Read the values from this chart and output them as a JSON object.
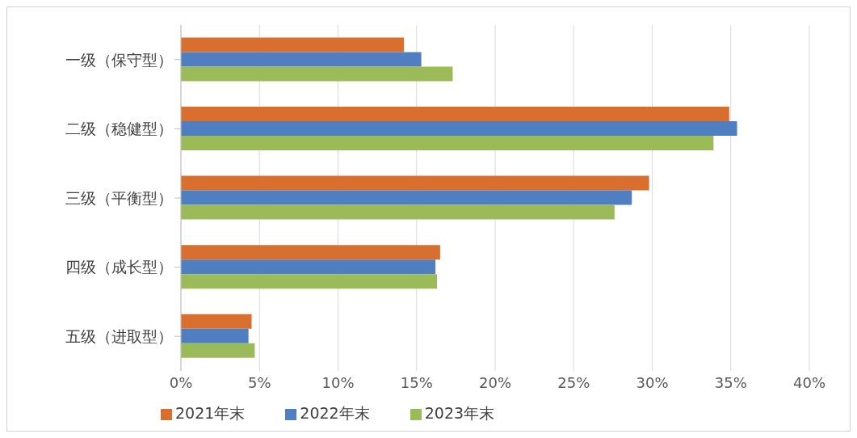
{
  "chart_data": {
    "type": "bar",
    "orientation": "horizontal",
    "categories": [
      "一级（保守型）",
      "二级（稳健型）",
      "三级（平衡型）",
      "四级（成长型）",
      "五级（进取型）"
    ],
    "series": [
      {
        "name": "2021年末",
        "color": "#d86f2e",
        "values": [
          14.2,
          34.9,
          29.8,
          16.5,
          4.5
        ]
      },
      {
        "name": "2022年末",
        "color": "#4f7fc0",
        "values": [
          15.3,
          35.4,
          28.7,
          16.2,
          4.3
        ]
      },
      {
        "name": "2023年末",
        "color": "#9bbb59",
        "values": [
          17.3,
          33.9,
          27.6,
          16.3,
          4.7
        ]
      }
    ],
    "xlim": [
      0,
      40
    ],
    "xticks": [
      {
        "value": 0,
        "label": "0%"
      },
      {
        "value": 5,
        "label": "5%"
      },
      {
        "value": 10,
        "label": "10%"
      },
      {
        "value": 15,
        "label": "15%"
      },
      {
        "value": 20,
        "label": "20%"
      },
      {
        "value": 25,
        "label": "25%"
      },
      {
        "value": 30,
        "label": "30%"
      },
      {
        "value": 35,
        "label": "35%"
      },
      {
        "value": 40,
        "label": "40%"
      }
    ],
    "grid": "x",
    "legend": "bottom"
  }
}
